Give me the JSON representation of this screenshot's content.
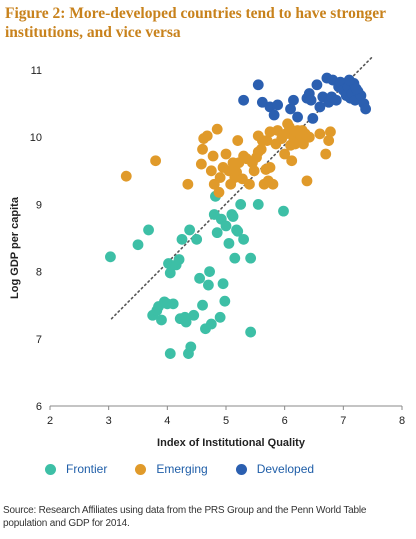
{
  "figure": {
    "title": "Figure 2: More-developed countries tend to have stronger institutions, and vice versa",
    "source": "Source: Research Affiliates using data from the PRS Group and the Penn World Table population and GDP for 2014."
  },
  "colors": {
    "frontier": "#3dbfa6",
    "emerging": "#e09a2a",
    "developed": "#2b5fb0",
    "trend": "#555555",
    "axis": "#888888",
    "title": "#c8821c"
  },
  "chart_data": {
    "type": "scatter",
    "title": "Figure 2: More-developed countries tend to have stronger institutions, and vice versa",
    "xlabel": "Index of Institutional Quality",
    "ylabel": "Log GDP per capita",
    "xlim": [
      2,
      8
    ],
    "ylim": [
      6,
      11
    ],
    "xticks": [
      2,
      3,
      4,
      5,
      6,
      7,
      8
    ],
    "yticks": [
      6,
      7,
      8,
      9,
      10,
      11
    ],
    "grid": false,
    "legend_position": "bottom",
    "trendline": {
      "style": "dotted",
      "from": [
        3.05,
        7.3
      ],
      "to": [
        7.5,
        11.2
      ]
    },
    "series": [
      {
        "name": "Frontier",
        "color": "#3dbfa6",
        "points": [
          [
            3.03,
            8.22
          ],
          [
            3.5,
            8.4
          ],
          [
            3.68,
            8.62
          ],
          [
            3.75,
            7.35
          ],
          [
            3.82,
            7.42
          ],
          [
            3.85,
            7.48
          ],
          [
            3.9,
            7.28
          ],
          [
            3.95,
            7.55
          ],
          [
            4.0,
            7.52
          ],
          [
            4.02,
            8.12
          ],
          [
            4.05,
            6.78
          ],
          [
            4.05,
            7.98
          ],
          [
            4.1,
            7.52
          ],
          [
            4.15,
            8.1
          ],
          [
            4.2,
            8.18
          ],
          [
            4.22,
            7.3
          ],
          [
            4.25,
            8.48
          ],
          [
            4.3,
            7.32
          ],
          [
            4.32,
            7.25
          ],
          [
            4.36,
            6.78
          ],
          [
            4.38,
            8.62
          ],
          [
            4.4,
            6.88
          ],
          [
            4.45,
            7.35
          ],
          [
            4.5,
            8.48
          ],
          [
            4.55,
            7.9
          ],
          [
            4.6,
            7.5
          ],
          [
            4.65,
            7.15
          ],
          [
            4.7,
            7.8
          ],
          [
            4.72,
            8.0
          ],
          [
            4.75,
            7.22
          ],
          [
            4.8,
            8.85
          ],
          [
            4.82,
            9.12
          ],
          [
            4.85,
            8.58
          ],
          [
            4.9,
            7.32
          ],
          [
            4.92,
            8.78
          ],
          [
            4.95,
            7.82
          ],
          [
            4.98,
            7.56
          ],
          [
            5.0,
            8.68
          ],
          [
            5.05,
            8.42
          ],
          [
            5.1,
            8.85
          ],
          [
            5.12,
            8.82
          ],
          [
            5.15,
            8.2
          ],
          [
            5.18,
            8.62
          ],
          [
            5.2,
            8.6
          ],
          [
            5.25,
            9.0
          ],
          [
            5.3,
            8.48
          ],
          [
            5.42,
            8.2
          ],
          [
            5.42,
            7.1
          ],
          [
            5.55,
            9.0
          ],
          [
            5.98,
            8.9
          ]
        ]
      },
      {
        "name": "Emerging",
        "color": "#e09a2a",
        "points": [
          [
            3.3,
            9.42
          ],
          [
            3.8,
            9.65
          ],
          [
            4.35,
            9.3
          ],
          [
            4.58,
            9.6
          ],
          [
            4.6,
            9.82
          ],
          [
            4.62,
            9.98
          ],
          [
            4.68,
            10.02
          ],
          [
            4.75,
            9.5
          ],
          [
            4.78,
            9.72
          ],
          [
            4.8,
            9.3
          ],
          [
            4.85,
            10.12
          ],
          [
            4.88,
            9.18
          ],
          [
            4.9,
            9.4
          ],
          [
            4.95,
            9.55
          ],
          [
            5.0,
            9.75
          ],
          [
            5.05,
            9.5
          ],
          [
            5.08,
            9.3
          ],
          [
            5.12,
            9.62
          ],
          [
            5.15,
            9.4
          ],
          [
            5.18,
            9.48
          ],
          [
            5.2,
            9.95
          ],
          [
            5.22,
            9.62
          ],
          [
            5.28,
            9.38
          ],
          [
            5.3,
            9.72
          ],
          [
            5.35,
            9.68
          ],
          [
            5.4,
            9.3
          ],
          [
            5.45,
            9.62
          ],
          [
            5.48,
            9.5
          ],
          [
            5.52,
            9.7
          ],
          [
            5.55,
            9.78
          ],
          [
            5.6,
            9.82
          ],
          [
            5.62,
            9.95
          ],
          [
            5.65,
            9.3
          ],
          [
            5.68,
            9.52
          ],
          [
            5.72,
            9.35
          ],
          [
            5.75,
            9.55
          ],
          [
            5.8,
            9.3
          ],
          [
            5.85,
            9.9
          ],
          [
            5.88,
            10.1
          ],
          [
            5.95,
            9.98
          ],
          [
            6.0,
            9.75
          ],
          [
            6.02,
            10.05
          ],
          [
            6.05,
            10.2
          ],
          [
            6.08,
            10.15
          ],
          [
            6.1,
            9.88
          ],
          [
            6.12,
            9.65
          ],
          [
            6.15,
            10.0
          ],
          [
            6.18,
            9.9
          ],
          [
            6.2,
            10.08
          ],
          [
            6.22,
            10.1
          ],
          [
            6.25,
            9.95
          ],
          [
            6.28,
            10.02
          ],
          [
            6.3,
            10.1
          ],
          [
            6.32,
            9.9
          ],
          [
            6.35,
            10.05
          ],
          [
            6.38,
            9.35
          ],
          [
            6.42,
            10.0
          ],
          [
            6.6,
            10.05
          ],
          [
            6.7,
            9.75
          ],
          [
            6.75,
            9.95
          ],
          [
            6.78,
            10.08
          ],
          [
            5.75,
            10.08
          ],
          [
            5.55,
            10.02
          ],
          [
            5.7,
            9.95
          ]
        ]
      },
      {
        "name": "Developed",
        "color": "#2b5fb0",
        "points": [
          [
            5.3,
            10.55
          ],
          [
            5.55,
            10.78
          ],
          [
            5.62,
            10.52
          ],
          [
            5.75,
            10.45
          ],
          [
            5.82,
            10.33
          ],
          [
            5.88,
            10.48
          ],
          [
            6.1,
            10.42
          ],
          [
            6.15,
            10.55
          ],
          [
            6.22,
            10.3
          ],
          [
            6.38,
            10.58
          ],
          [
            6.42,
            10.65
          ],
          [
            6.45,
            10.55
          ],
          [
            6.48,
            10.28
          ],
          [
            6.55,
            10.78
          ],
          [
            6.6,
            10.45
          ],
          [
            6.65,
            10.6
          ],
          [
            6.72,
            10.88
          ],
          [
            6.75,
            10.52
          ],
          [
            6.8,
            10.6
          ],
          [
            6.82,
            10.85
          ],
          [
            6.88,
            10.55
          ],
          [
            6.92,
            10.75
          ],
          [
            6.95,
            10.82
          ],
          [
            7.0,
            10.7
          ],
          [
            7.05,
            10.62
          ],
          [
            7.08,
            10.75
          ],
          [
            7.12,
            10.58
          ],
          [
            7.15,
            10.65
          ],
          [
            7.18,
            10.8
          ],
          [
            7.2,
            10.55
          ],
          [
            7.25,
            10.68
          ],
          [
            7.3,
            10.62
          ],
          [
            7.35,
            10.5
          ],
          [
            7.38,
            10.42
          ],
          [
            7.1,
            10.85
          ],
          [
            7.22,
            10.72
          ]
        ]
      }
    ]
  }
}
